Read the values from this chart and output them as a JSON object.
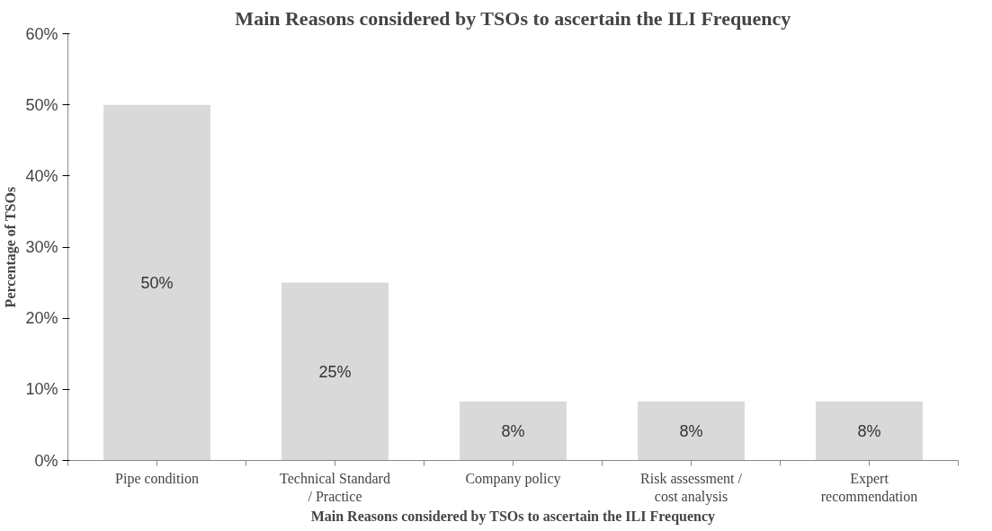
{
  "chart_data": {
    "type": "bar",
    "title": "Main Reasons considered by TSOs to ascertain the ILI Frequency",
    "xlabel": "Main Reasons considered by TSOs to ascertain the ILI Frequency",
    "ylabel": "Percentage of TSOs",
    "categories": [
      "Pipe condition",
      "Technical Standard / Practice",
      "Company policy",
      "Risk assessment / cost analysis",
      "Expert recommendation"
    ],
    "values": [
      50,
      25,
      8.3,
      8.3,
      8.3
    ],
    "value_labels": [
      "50%",
      "25%",
      "8%",
      "8%",
      "8%"
    ],
    "color": "#d9d9d9",
    "ylim": [
      0,
      60
    ],
    "yticks": [
      {
        "value": 0,
        "label": "0%"
      },
      {
        "value": 10,
        "label": "10%"
      },
      {
        "value": 20,
        "label": "20%"
      },
      {
        "value": 30,
        "label": "30%"
      },
      {
        "value": 40,
        "label": "40%"
      },
      {
        "value": 50,
        "label": "50%"
      },
      {
        "value": 60,
        "label": "60%"
      }
    ],
    "grid": false
  }
}
